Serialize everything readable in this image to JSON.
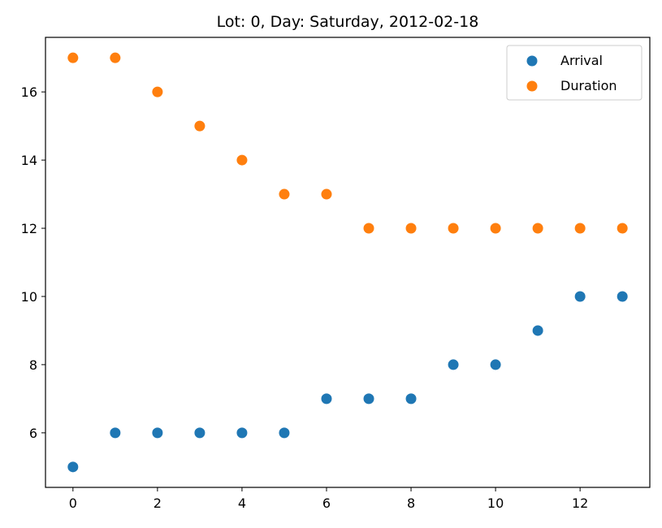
{
  "chart_data": {
    "type": "scatter",
    "title": "Lot: 0, Day: Saturday, 2012-02-18",
    "xlabel": "",
    "ylabel": "",
    "x": [
      0,
      1,
      2,
      3,
      4,
      5,
      6,
      7,
      8,
      9,
      10,
      11,
      12,
      13
    ],
    "series": [
      {
        "name": "Arrival",
        "color": "#1f77b4",
        "values": [
          5,
          6,
          6,
          6,
          6,
          6,
          7,
          7,
          7,
          8,
          8,
          9,
          10,
          10
        ]
      },
      {
        "name": "Duration",
        "color": "#ff7f0e",
        "values": [
          17,
          17,
          16,
          15,
          14,
          13,
          13,
          12,
          12,
          12,
          12,
          12,
          12,
          12
        ]
      }
    ],
    "xlim": [
      -0.65,
      13.65
    ],
    "ylim": [
      4.4,
      17.6
    ],
    "xticks": [
      0,
      2,
      4,
      6,
      8,
      10,
      12
    ],
    "yticks": [
      6,
      8,
      10,
      12,
      14,
      16
    ],
    "grid": false,
    "legend_position": "top-right"
  }
}
